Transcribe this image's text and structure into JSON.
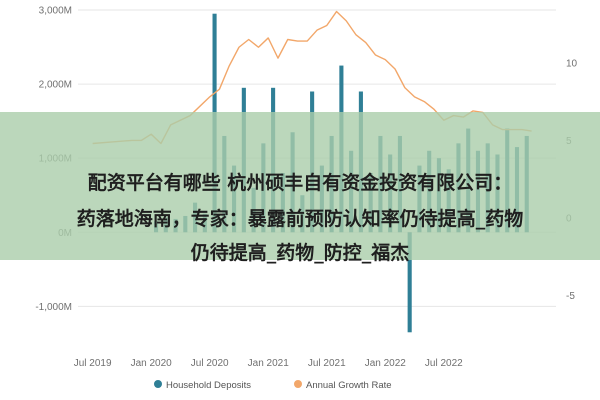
{
  "chart_data": {
    "type": "bar+line",
    "title": "",
    "x_ticks": [
      "Jul 2019",
      "Jan 2020",
      "Jul 2020",
      "Jan 2021",
      "Jul 2021",
      "Jan 2022",
      "Jul 2022"
    ],
    "y_left": {
      "ticks": [
        "3,000M",
        "2,000M",
        "1,000M",
        "0M",
        "-1,000M"
      ],
      "range": [
        -1400,
        3000
      ]
    },
    "y_right": {
      "ticks": [
        "10",
        "5",
        "0",
        "-5"
      ],
      "range": [
        -7.6,
        13.4
      ]
    },
    "series": [
      {
        "name": "Household Deposits",
        "kind": "bar",
        "color": "#2f7f96",
        "x_months": [
          6.5,
          7.5,
          8.5,
          9.5,
          10.5,
          11.5,
          12.5,
          13.5,
          14.5,
          15.5,
          16.5,
          17.5,
          18.5,
          19.5,
          20.5,
          21.5,
          22.5,
          23.5,
          24.5,
          25.5,
          26.5,
          27.5,
          28.5,
          29.5,
          30.5,
          31.5,
          32.5,
          33.5,
          34.5,
          35.5,
          36.5,
          37.5,
          38.5,
          39.5,
          40.5,
          41.5,
          42.5,
          43.5,
          44.5
        ],
        "values": [
          150,
          200,
          180,
          220,
          400,
          250,
          2950,
          1300,
          900,
          1950,
          600,
          1200,
          1950,
          800,
          1350,
          500,
          1900,
          900,
          1300,
          2250,
          1100,
          1900,
          800,
          1300,
          1050,
          1300,
          -1350,
          900,
          1100,
          1000,
          850,
          1200,
          1400,
          1100,
          1200,
          1050,
          1400,
          1150,
          1300
        ]
      },
      {
        "name": "Annual Growth Rate",
        "kind": "line",
        "color": "#f2a76a",
        "x_months": [
          0,
          2,
          4,
          5,
          6,
          7,
          8,
          10,
          12,
          13,
          14,
          15,
          16,
          17,
          18,
          19,
          20,
          21,
          22,
          23,
          24,
          25,
          26,
          27,
          28,
          29,
          30,
          31,
          32,
          33,
          34,
          35,
          36,
          37,
          38,
          39,
          40,
          41,
          42,
          43,
          44,
          45
        ],
        "values": [
          4.8,
          4.9,
          5.0,
          5.0,
          5.4,
          4.8,
          6.0,
          6.6,
          7.8,
          8.3,
          9.8,
          11.0,
          11.5,
          11.0,
          11.6,
          10.3,
          11.5,
          11.4,
          11.4,
          12.1,
          12.4,
          13.3,
          12.7,
          11.8,
          11.3,
          10.5,
          10.2,
          9.6,
          8.4,
          7.8,
          7.5,
          7.0,
          6.3,
          6.6,
          6.5,
          6.9,
          6.8,
          6.0,
          5.7,
          5.7,
          5.7,
          5.6
        ]
      }
    ],
    "legend_position": "bottom-left",
    "grid": true
  },
  "legend": [
    {
      "label": "Household Deposits",
      "color": "#2f7f96",
      "marker": "circle"
    },
    {
      "label": "Annual Growth Rate",
      "color": "#f2a76a",
      "marker": "circle"
    }
  ],
  "overlay": {
    "line1": "配资平台有哪些 杭州硕丰自有资金投资有限公司：",
    "line2": "药落地海南，专家：暴露前预防认知率仍待提高_药物",
    "line3": "仍待提高_药物_防控_福杰"
  }
}
